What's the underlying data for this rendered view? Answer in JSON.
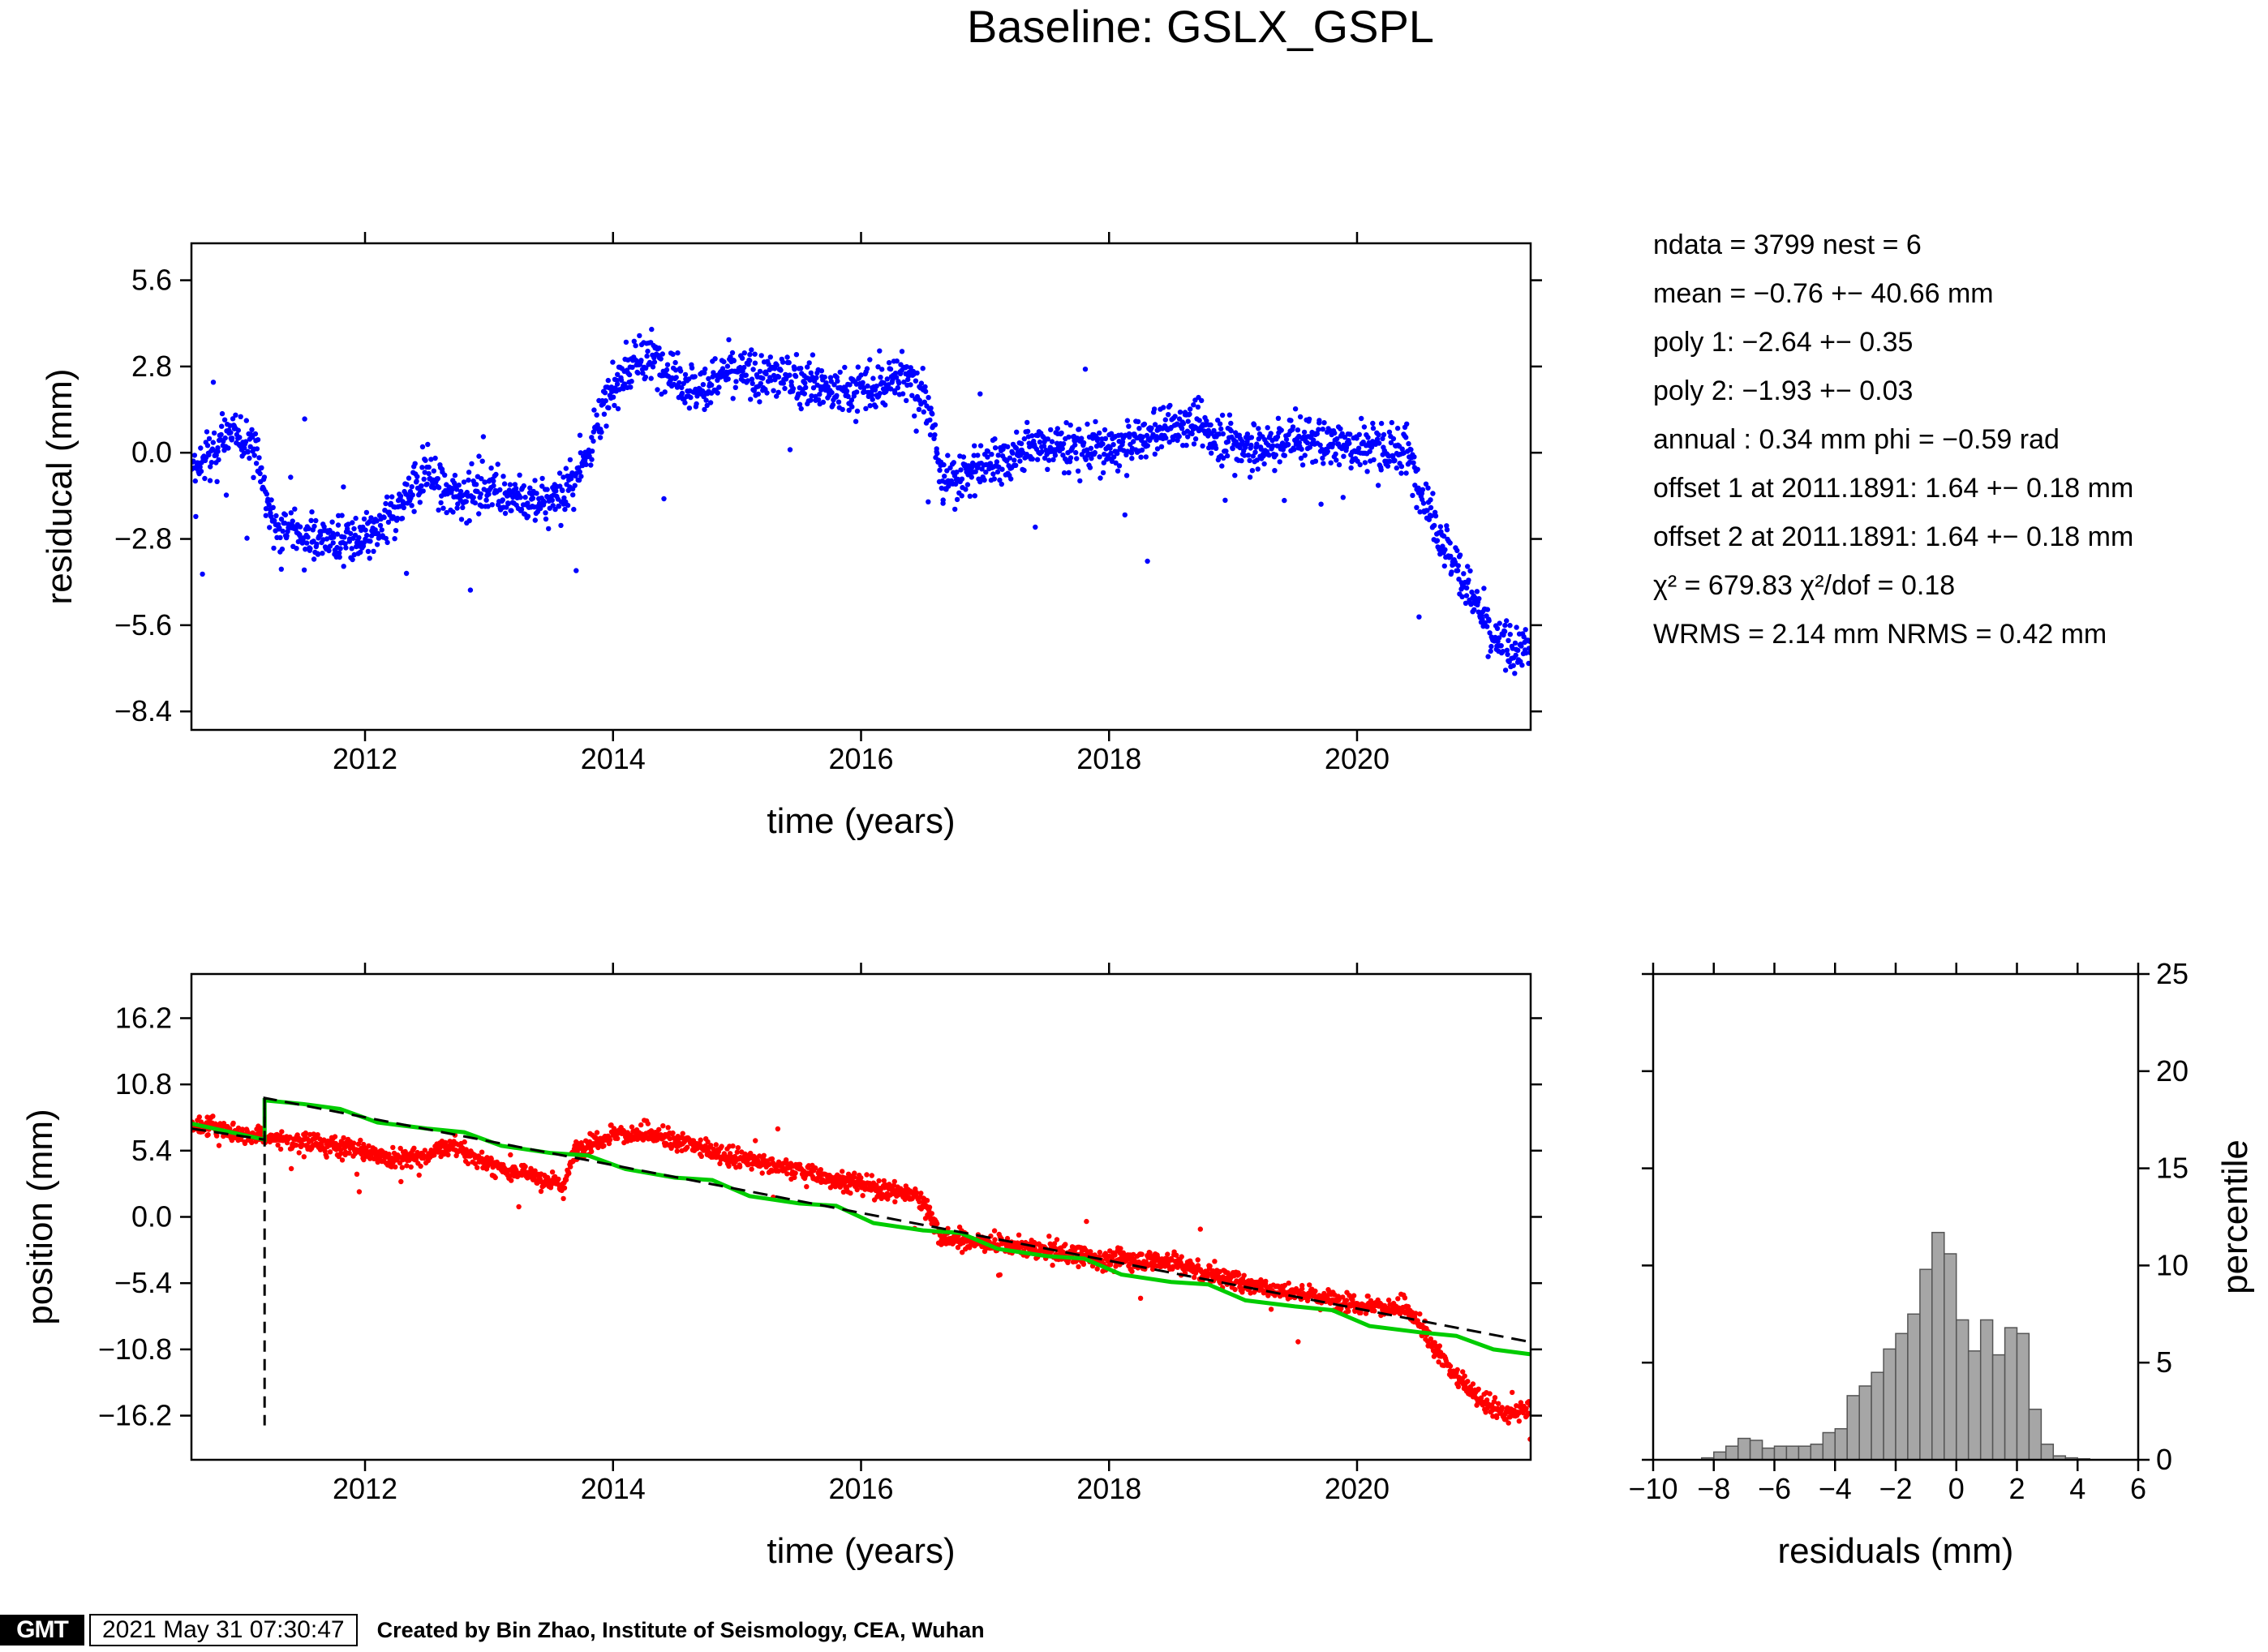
{
  "title": "Baseline: GSLX_GSPL",
  "stats": [
    "ndata = 3799  nest = 6",
    "mean = −0.76 +− 40.66 mm",
    "poly 1: −2.64 +− 0.35",
    "poly 2: −1.93 +− 0.03",
    "annual : 0.34 mm  phi = −0.59 rad",
    "offset 1 at 2011.1891: 1.64 +− 0.18 mm",
    "offset 2 at 2011.1891: 1.64 +− 0.18 mm",
    "χ² = 679.83  χ²/dof = 0.18",
    "WRMS = 2.14 mm  NRMS = 0.42 mm"
  ],
  "footer": {
    "logo": "GMT",
    "timestamp": "2021 May 31 07:30:47",
    "credit": "Created by Bin Zhao, Institute of Seismology, CEA, Wuhan"
  },
  "colors": {
    "residual_points": "#0000ff",
    "position_points": "#ff0000",
    "model_fit": "#00cc00",
    "trend_line": "#000000",
    "histogram_bars": "#a6a6a6"
  },
  "chart_data": [
    {
      "id": "residual",
      "type": "scatter",
      "xlabel": "time (years)",
      "ylabel": "residucal (mm)",
      "xlim": [
        2010.6,
        2021.4
      ],
      "ylim": [
        -9.0,
        6.8
      ],
      "xticks": [
        2012,
        2014,
        2016,
        2018,
        2020
      ],
      "yticks": [
        -8.4,
        -5.6,
        -2.8,
        0.0,
        2.8,
        5.6
      ],
      "ytick_labels": [
        "−8.4",
        "−5.6",
        "−2.8",
        "0.0",
        "2.8",
        "5.6"
      ],
      "n_points": 3799,
      "series": [
        {
          "style": "points",
          "color": "#0000ff",
          "x": [
            2010.6,
            2010.9,
            2011.1,
            2011.25,
            2011.6,
            2011.9,
            2012.1,
            2012.3,
            2012.5,
            2012.7,
            2013.0,
            2013.3,
            2013.5,
            2013.7,
            2013.9,
            2014.1,
            2014.3,
            2014.5,
            2014.7,
            2014.9,
            2015.2,
            2015.5,
            2015.8,
            2016.1,
            2016.4,
            2016.55,
            2016.65,
            2017.0,
            2017.4,
            2017.7,
            2018.0,
            2018.3,
            2018.6,
            2018.9,
            2019.2,
            2019.5,
            2019.8,
            2020.1,
            2020.4,
            2020.55,
            2020.75,
            2020.95,
            2021.1,
            2021.4
          ],
          "y": [
            -0.8,
            0.6,
            0.3,
            -2.3,
            -2.8,
            -2.9,
            -2.7,
            -1.6,
            -0.6,
            -1.4,
            -1.1,
            -1.7,
            -1.5,
            -0.9,
            1.2,
            2.7,
            3.1,
            2.5,
            2.0,
            2.6,
            2.5,
            2.4,
            2.0,
            2.1,
            2.6,
            1.5,
            -1.0,
            -0.4,
            0.2,
            0.2,
            0.1,
            0.5,
            1.0,
            0.5,
            0.1,
            0.5,
            0.3,
            0.2,
            0.0,
            -1.6,
            -3.3,
            -4.8,
            -6.2,
            -6.4
          ]
        }
      ]
    },
    {
      "id": "position",
      "type": "scatter",
      "xlabel": "time (years)",
      "ylabel": "position (mm)",
      "xlim": [
        2010.6,
        2021.4
      ],
      "ylim": [
        -19.8,
        19.8
      ],
      "xticks": [
        2012,
        2014,
        2016,
        2018,
        2020
      ],
      "yticks": [
        -16.2,
        -10.8,
        -5.4,
        0.0,
        5.4,
        10.8,
        16.2
      ],
      "ytick_labels": [
        "−16.2",
        "−10.8",
        "−5.4",
        "0.0",
        "5.4",
        "10.8",
        "16.2"
      ],
      "offset_marker_x": 2011.19,
      "series": [
        {
          "style": "points",
          "color": "#ff0000",
          "x": [
            2010.6,
            2011.0,
            2011.25,
            2011.6,
            2011.9,
            2012.2,
            2012.5,
            2012.7,
            2013.0,
            2013.3,
            2013.6,
            2013.7,
            2014.0,
            2014.3,
            2014.6,
            2015.0,
            2015.5,
            2016.0,
            2016.45,
            2016.55,
            2016.65,
            2017.0,
            2017.5,
            2018.0,
            2018.5,
            2019.0,
            2019.5,
            2020.0,
            2020.4,
            2020.55,
            2020.75,
            2021.0,
            2021.2,
            2021.4
          ],
          "y": [
            7.5,
            6.8,
            6.3,
            6.0,
            5.5,
            4.8,
            5.0,
            5.8,
            4.2,
            3.5,
            2.5,
            5.5,
            6.8,
            6.6,
            6.0,
            4.8,
            3.8,
            2.6,
            1.8,
            0.5,
            -1.8,
            -2.0,
            -2.8,
            -3.5,
            -3.6,
            -5.2,
            -6.2,
            -7.1,
            -7.6,
            -9.5,
            -12.5,
            -14.8,
            -16.2,
            -15.5
          ]
        },
        {
          "name": "",
          "style": "line",
          "color": "#00cc00",
          "x": [
            2010.6,
            2011.19,
            2011.19,
            2011.5,
            2011.8,
            2012.1,
            2012.5,
            2012.8,
            2013.1,
            2013.5,
            2013.8,
            2014.1,
            2014.5,
            2014.8,
            2015.1,
            2015.5,
            2015.8,
            2016.1,
            2016.5,
            2016.8,
            2017.1,
            2017.5,
            2017.8,
            2018.1,
            2018.5,
            2018.8,
            2019.1,
            2019.5,
            2019.8,
            2020.1,
            2020.5,
            2020.8,
            2021.1,
            2021.4
          ],
          "y": [
            7.6,
            6.3,
            9.5,
            9.2,
            8.8,
            7.7,
            7.2,
            6.9,
            5.8,
            5.2,
            5.0,
            3.9,
            3.2,
            3.0,
            1.7,
            1.1,
            0.9,
            -0.5,
            -1.1,
            -1.3,
            -2.6,
            -3.2,
            -3.4,
            -4.7,
            -5.3,
            -5.5,
            -6.8,
            -7.3,
            -7.6,
            -8.9,
            -9.4,
            -9.7,
            -10.8,
            -11.2
          ]
        },
        {
          "name": "",
          "style": "dashed",
          "color": "#000000",
          "x": [
            2010.6,
            2011.19,
            2011.19,
            2021.4
          ],
          "y": [
            7.2,
            6.3,
            9.7,
            -10.2
          ]
        }
      ]
    },
    {
      "id": "histogram",
      "type": "bar",
      "xlabel": "residuals (mm)",
      "ylabel": "percentile",
      "xlim": [
        -10,
        6
      ],
      "ylim": [
        0,
        25
      ],
      "xticks": [
        -10,
        -8,
        -6,
        -4,
        -2,
        0,
        2,
        4,
        6
      ],
      "xtick_labels": [
        "−10",
        "−8",
        "−6",
        "−4",
        "−2",
        "0",
        "2",
        "4",
        "6"
      ],
      "yticks": [
        0,
        5,
        10,
        15,
        20,
        25
      ],
      "bin_width": 0.4,
      "bin_starts": [
        -8.4,
        -8.0,
        -7.6,
        -7.2,
        -6.8,
        -6.4,
        -6.0,
        -5.6,
        -5.2,
        -4.8,
        -4.4,
        -4.0,
        -3.6,
        -3.2,
        -2.8,
        -2.4,
        -2.0,
        -1.6,
        -1.2,
        -0.8,
        -0.4,
        0.0,
        0.4,
        0.8,
        1.2,
        1.6,
        2.0,
        2.4,
        2.8,
        3.2,
        3.6,
        4.0,
        4.4,
        4.8,
        5.2
      ],
      "values": [
        0.1,
        0.4,
        0.7,
        1.1,
        1.0,
        0.6,
        0.7,
        0.7,
        0.7,
        0.8,
        1.4,
        1.6,
        3.3,
        3.8,
        4.5,
        5.7,
        6.5,
        7.5,
        9.8,
        11.7,
        10.6,
        7.2,
        5.6,
        7.2,
        5.4,
        6.8,
        6.5,
        2.6,
        0.8,
        0.2,
        0.1,
        0.05,
        0.0,
        0.0,
        0.0
      ]
    }
  ]
}
